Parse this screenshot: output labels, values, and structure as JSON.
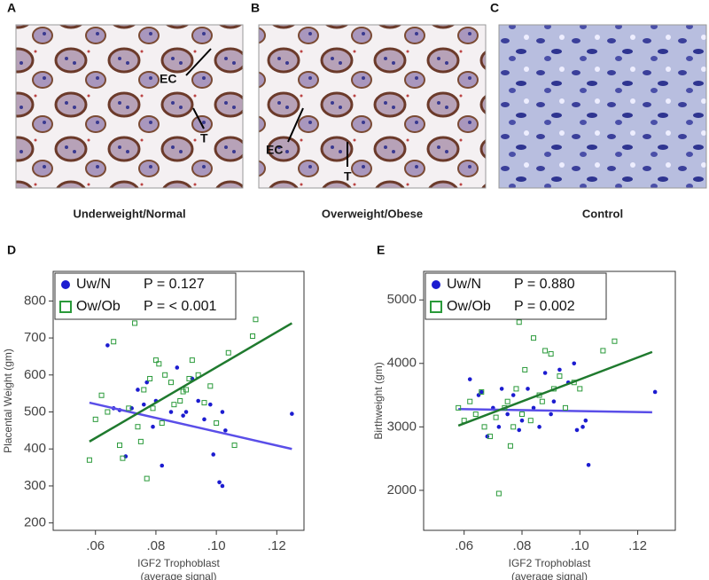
{
  "panels": [
    {
      "letter": "A",
      "caption": "Underweight/Normal",
      "labels": [
        "EC",
        "T"
      ]
    },
    {
      "letter": "B",
      "caption": "Overweight/Obese",
      "labels": [
        "EC",
        "T"
      ]
    },
    {
      "letter": "C",
      "caption": "Control"
    }
  ],
  "chart_data": [
    {
      "type": "scatter",
      "panel": "D",
      "ylabel": "Placental Weight (gm)",
      "xlabel": [
        "IGF2 Trophoblast",
        "(average signal)"
      ],
      "xlim": [
        0.046,
        0.129
      ],
      "ylim": [
        180,
        880
      ],
      "xticks": [
        {
          "value": 0.06,
          "label": ".06"
        },
        {
          "value": 0.08,
          "label": ".08"
        },
        {
          "value": 0.1,
          "label": ".10"
        },
        {
          "value": 0.12,
          "label": ".12"
        }
      ],
      "yticks": [
        200,
        300,
        400,
        500,
        600,
        700,
        800
      ],
      "series": [
        {
          "name": "Uw/N",
          "p_label": "P = 0.127",
          "color": "#1c1cd0",
          "marker": "circle",
          "x": [
            0.064,
            0.066,
            0.068,
            0.07,
            0.072,
            0.074,
            0.076,
            0.077,
            0.079,
            0.08,
            0.082,
            0.085,
            0.087,
            0.089,
            0.09,
            0.092,
            0.094,
            0.096,
            0.098,
            0.099,
            0.101,
            0.102,
            0.102,
            0.103,
            0.125
          ],
          "y": [
            680,
            510,
            505,
            380,
            510,
            560,
            520,
            580,
            460,
            530,
            355,
            500,
            620,
            490,
            500,
            590,
            530,
            480,
            520,
            385,
            310,
            300,
            500,
            450,
            495
          ],
          "fit": {
            "x": [
              0.058,
              0.125
            ],
            "y": [
              525,
              400
            ]
          },
          "fit_color": "#5a4ee8"
        },
        {
          "name": "Ow/Ob",
          "p_label": "P = < 0.001",
          "color": "#2a9a3a",
          "marker": "square",
          "x": [
            0.058,
            0.06,
            0.062,
            0.064,
            0.066,
            0.068,
            0.069,
            0.071,
            0.073,
            0.074,
            0.075,
            0.076,
            0.077,
            0.078,
            0.079,
            0.08,
            0.081,
            0.082,
            0.083,
            0.085,
            0.086,
            0.088,
            0.089,
            0.09,
            0.091,
            0.092,
            0.094,
            0.096,
            0.098,
            0.1,
            0.104,
            0.106,
            0.112,
            0.113
          ],
          "y": [
            370,
            480,
            545,
            500,
            690,
            410,
            375,
            510,
            740,
            460,
            420,
            560,
            320,
            590,
            510,
            640,
            630,
            470,
            600,
            580,
            520,
            530,
            555,
            560,
            590,
            640,
            600,
            525,
            570,
            470,
            660,
            410,
            705,
            750
          ],
          "fit": {
            "x": [
              0.058,
              0.125
            ],
            "y": [
              420,
              740
            ]
          },
          "fit_color": "#1f7a2e"
        }
      ]
    },
    {
      "type": "scatter",
      "panel": "E",
      "ylabel": "Birthweight  (gm)",
      "xlabel": [
        "IGF2 Trophoblast",
        "(average signal)"
      ],
      "xlim": [
        0.046,
        0.133
      ],
      "ylim": [
        1370,
        5450
      ],
      "xticks": [
        {
          "value": 0.06,
          "label": ".06"
        },
        {
          "value": 0.08,
          "label": ".08"
        },
        {
          "value": 0.1,
          "label": ".10"
        },
        {
          "value": 0.12,
          "label": ".12"
        }
      ],
      "yticks": [
        2000,
        3000,
        4000,
        5000
      ],
      "series": [
        {
          "name": "Uw/N",
          "p_label": "P = 0.880",
          "color": "#1c1cd0",
          "marker": "circle",
          "x": [
            0.062,
            0.065,
            0.066,
            0.068,
            0.07,
            0.072,
            0.073,
            0.075,
            0.077,
            0.079,
            0.08,
            0.082,
            0.084,
            0.086,
            0.088,
            0.09,
            0.091,
            0.093,
            0.096,
            0.098,
            0.099,
            0.101,
            0.102,
            0.103,
            0.126
          ],
          "y": [
            3750,
            3500,
            3550,
            2850,
            3300,
            3000,
            3600,
            3200,
            3500,
            2950,
            3100,
            3600,
            3300,
            3000,
            3850,
            3200,
            3400,
            3900,
            3700,
            4000,
            2950,
            3000,
            3100,
            2400,
            3550
          ],
          "fit": {
            "x": [
              0.058,
              0.125
            ],
            "y": [
              3280,
              3230
            ]
          },
          "fit_color": "#5a4ee8"
        },
        {
          "name": "Ow/Ob",
          "p_label": "P = 0.002",
          "color": "#2a9a3a",
          "marker": "square",
          "x": [
            0.058,
            0.06,
            0.062,
            0.064,
            0.066,
            0.067,
            0.069,
            0.071,
            0.072,
            0.074,
            0.075,
            0.076,
            0.077,
            0.078,
            0.079,
            0.08,
            0.081,
            0.083,
            0.084,
            0.086,
            0.087,
            0.088,
            0.09,
            0.091,
            0.093,
            0.095,
            0.098,
            0.1,
            0.108,
            0.112
          ],
          "y": [
            3300,
            3100,
            3400,
            3200,
            3550,
            3000,
            2850,
            3150,
            1950,
            3300,
            3400,
            2700,
            3000,
            3600,
            4650,
            3200,
            3900,
            3100,
            4400,
            3500,
            3400,
            4200,
            4150,
            3600,
            3800,
            3300,
            3700,
            3600,
            4200,
            4350
          ],
          "fit": {
            "x": [
              0.058,
              0.125
            ],
            "y": [
              3020,
              4180
            ]
          },
          "fit_color": "#1f7a2e"
        }
      ]
    }
  ]
}
